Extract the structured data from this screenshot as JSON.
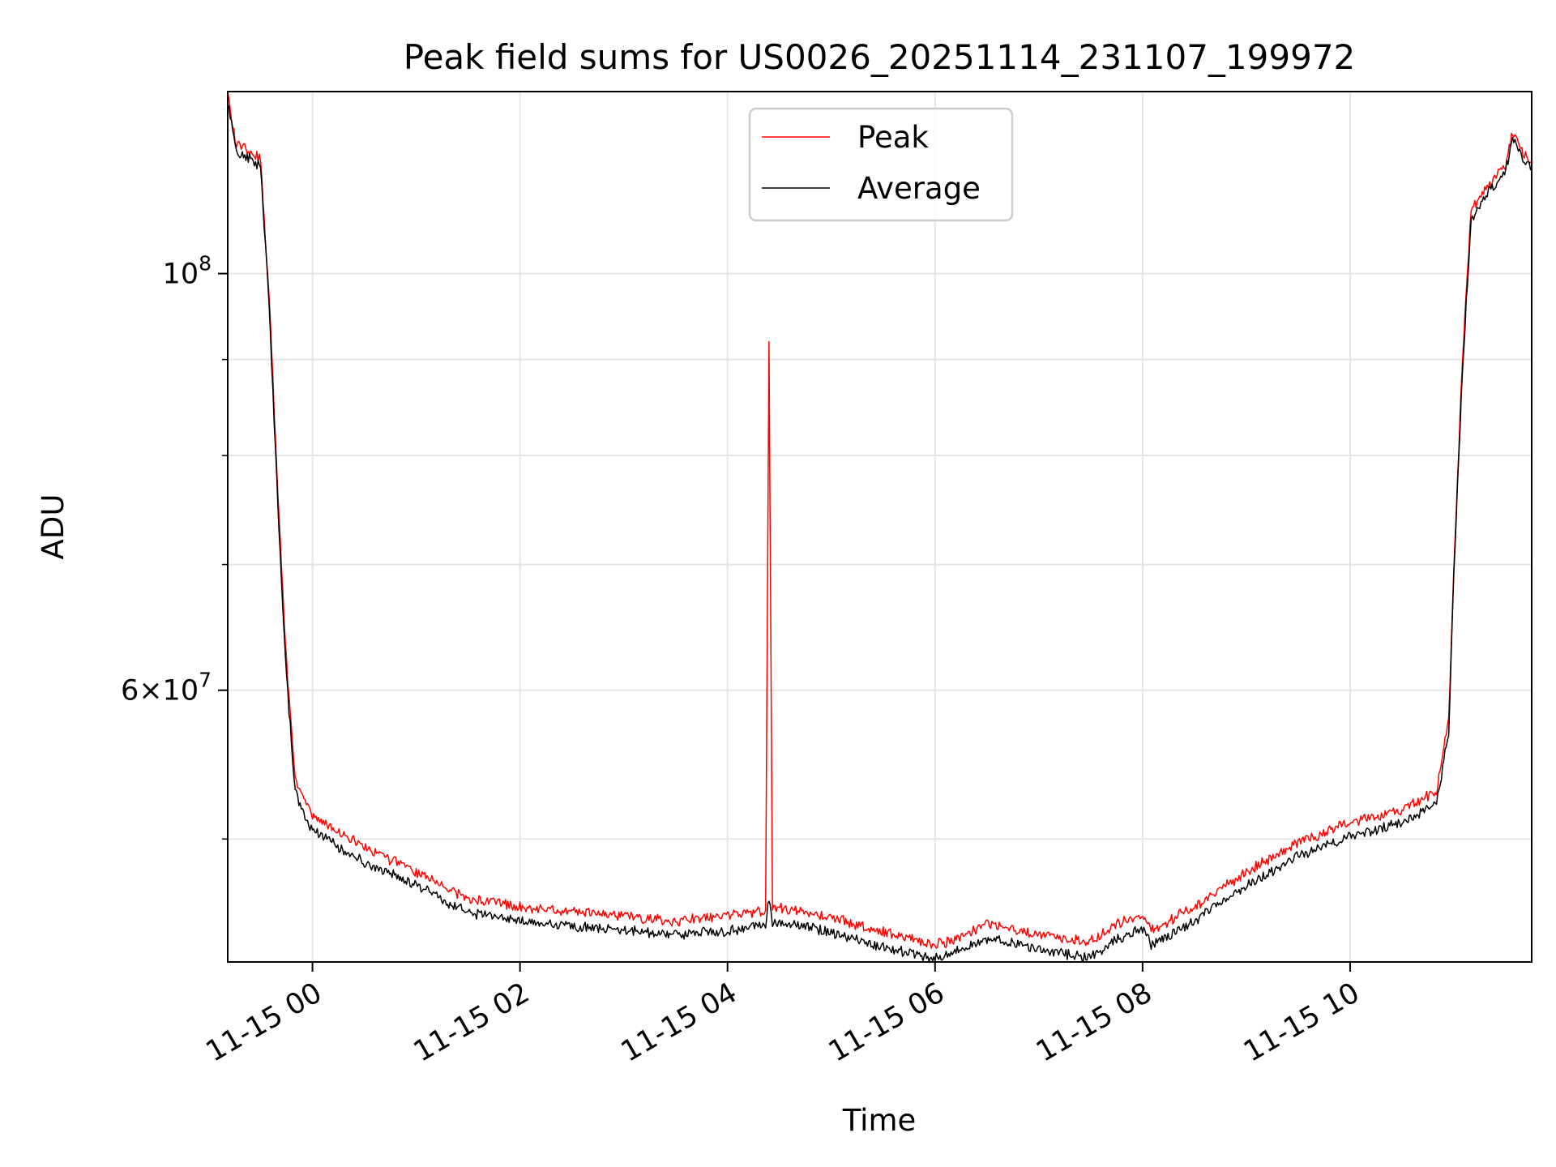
{
  "chart_data": {
    "type": "line",
    "title": "Peak field sums for US0026_20251114_231107_199972",
    "xlabel": "Time",
    "ylabel": "ADU",
    "yscale": "log",
    "xlim": [
      "2025-11-14 23:11",
      "2025-11-15 11:45"
    ],
    "ylim": [
      43000000,
      125000000
    ],
    "grid": true,
    "legend": "upper center",
    "x_ticks": [
      "11-15 00",
      "11-15 02",
      "11-15 04",
      "11-15 06",
      "11-15 08",
      "11-15 10"
    ],
    "x_tick_times": [
      "2025-11-15 00:00",
      "2025-11-15 02:00",
      "2025-11-15 04:00",
      "2025-11-15 06:00",
      "2025-11-15 08:00",
      "2025-11-15 10:00"
    ],
    "y_ticks": [
      {
        "value": 100000000,
        "label": "10^8"
      },
      {
        "value": 60000000,
        "label": "6×10^7"
      }
    ],
    "y_minor_ticks": [
      50000000,
      70000000,
      80000000,
      90000000
    ],
    "x": [
      "2025-11-14 23:11",
      "2025-11-14 23:16",
      "2025-11-14 23:25",
      "2025-11-14 23:30",
      "2025-11-14 23:35",
      "2025-11-14 23:40",
      "2025-11-14 23:45",
      "2025-11-14 23:50",
      "2025-11-14 23:55",
      "2025-11-15 00:00",
      "2025-11-15 00:30",
      "2025-11-15 01:00",
      "2025-11-15 01:30",
      "2025-11-15 02:00",
      "2025-11-15 02:30",
      "2025-11-15 03:00",
      "2025-11-15 03:30",
      "2025-11-15 04:00",
      "2025-11-15 04:22",
      "2025-11-15 04:24",
      "2025-11-15 04:26",
      "2025-11-15 04:40",
      "2025-11-15 05:00",
      "2025-11-15 05:30",
      "2025-11-15 06:00",
      "2025-11-15 06:15",
      "2025-11-15 06:30",
      "2025-11-15 06:45",
      "2025-11-15 07:00",
      "2025-11-15 07:15",
      "2025-11-15 07:30",
      "2025-11-15 07:45",
      "2025-11-15 08:00",
      "2025-11-15 08:05",
      "2025-11-15 08:30",
      "2025-11-15 09:00",
      "2025-11-15 09:30",
      "2025-11-15 10:00",
      "2025-11-15 10:30",
      "2025-11-15 10:50",
      "2025-11-15 10:57",
      "2025-11-15 11:00",
      "2025-11-15 11:05",
      "2025-11-15 11:10",
      "2025-11-15 11:15",
      "2025-11-15 11:20",
      "2025-11-15 11:25",
      "2025-11-15 11:30",
      "2025-11-15 11:34",
      "2025-11-15 11:40",
      "2025-11-15 11:45"
    ],
    "series": [
      {
        "name": "Peak",
        "color": "#ff0000",
        "values": [
          124500000,
          117000000,
          116000000,
          115000000,
          97000000,
          76000000,
          62000000,
          54000000,
          52500000,
          51500000,
          49500000,
          48000000,
          46500000,
          46000000,
          45700000,
          45500000,
          45200000,
          45500000,
          45800000,
          92000000,
          46000000,
          45800000,
          45400000,
          44600000,
          43900000,
          44300000,
          45000000,
          44800000,
          44400000,
          44200000,
          44100000,
          45000000,
          45600000,
          44700000,
          46000000,
          48000000,
          49800000,
          51000000,
          51800000,
          53000000,
          58000000,
          70000000,
          90000000,
          108000000,
          110000000,
          111500000,
          113000000,
          114500000,
          119000000,
          116000000,
          114500000
        ]
      },
      {
        "name": "Average",
        "color": "#000000",
        "values": [
          123500000,
          116000000,
          115000000,
          114000000,
          96000000,
          75000000,
          61000000,
          53000000,
          51500000,
          50500000,
          48600000,
          47200000,
          45700000,
          45200000,
          44900000,
          44700000,
          44400000,
          44700000,
          45000000,
          46500000,
          45200000,
          45000000,
          44600000,
          43800000,
          43200000,
          43600000,
          44200000,
          44000000,
          43600000,
          43400000,
          43300000,
          44200000,
          44800000,
          43900000,
          45200000,
          47200000,
          49000000,
          50200000,
          51000000,
          52200000,
          57000000,
          69000000,
          89000000,
          107000000,
          109000000,
          110500000,
          112000000,
          113500000,
          118000000,
          115000000,
          113500000
        ]
      }
    ]
  }
}
